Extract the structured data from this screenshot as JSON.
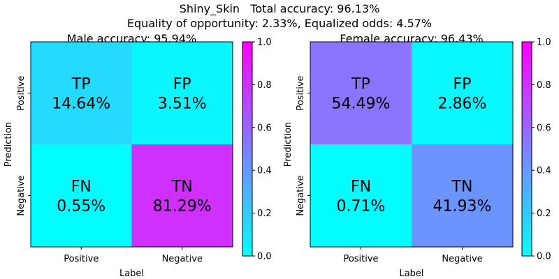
{
  "figure": {
    "title_line1": "Shiny_Skin   Total accuracy: 96.13%",
    "title_line2": "Equality of opportunity: 2.33%, Equalized odds: 4.57%"
  },
  "chart_data": [
    {
      "type": "heatmap",
      "title": "Male accuracy: 95.94%",
      "xlabel": "Label",
      "ylabel": "Prediction",
      "x_categories": [
        "Positive",
        "Negative"
      ],
      "y_categories": [
        "Positive",
        "Negative"
      ],
      "cells": [
        {
          "row": 0,
          "col": 0,
          "name": "TP",
          "text": "14.64%",
          "value": 0.1464
        },
        {
          "row": 0,
          "col": 1,
          "name": "FP",
          "text": "3.51%",
          "value": 0.0351
        },
        {
          "row": 1,
          "col": 0,
          "name": "FN",
          "text": "0.55%",
          "value": 0.0055
        },
        {
          "row": 1,
          "col": 1,
          "name": "TN",
          "text": "81.29%",
          "value": 0.8129
        }
      ],
      "colorbar": {
        "colormap": "cool",
        "range": [
          0.0,
          1.0
        ],
        "ticks": [
          "0.0",
          "0.2",
          "0.4",
          "0.6",
          "0.8",
          "1.0"
        ],
        "color_low": "#00ffff",
        "color_high": "#ff00ff"
      }
    },
    {
      "type": "heatmap",
      "title": "Female accuracy: 96.43%",
      "xlabel": "Label",
      "ylabel": "Prediction",
      "x_categories": [
        "Positive",
        "Negative"
      ],
      "y_categories": [
        "Positive",
        "Negative"
      ],
      "cells": [
        {
          "row": 0,
          "col": 0,
          "name": "TP",
          "text": "54.49%",
          "value": 0.5449
        },
        {
          "row": 0,
          "col": 1,
          "name": "FP",
          "text": "2.86%",
          "value": 0.0286
        },
        {
          "row": 1,
          "col": 0,
          "name": "FN",
          "text": "0.71%",
          "value": 0.0071
        },
        {
          "row": 1,
          "col": 1,
          "name": "TN",
          "text": "41.93%",
          "value": 0.4193
        }
      ],
      "colorbar": {
        "colormap": "cool",
        "range": [
          0.0,
          1.0
        ],
        "ticks": [
          "0.0",
          "0.2",
          "0.4",
          "0.6",
          "0.8",
          "1.0"
        ],
        "color_low": "#00ffff",
        "color_high": "#ff00ff"
      }
    }
  ]
}
